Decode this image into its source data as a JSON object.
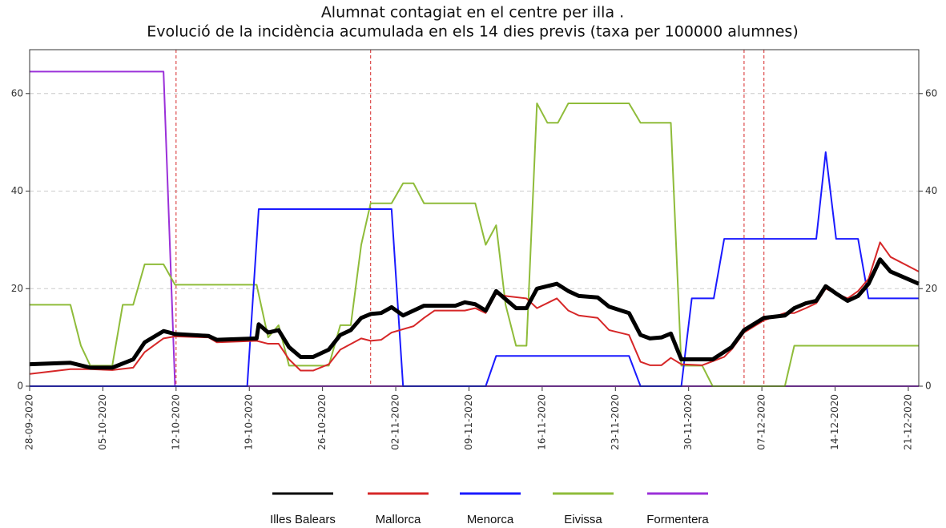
{
  "chart_data": {
    "type": "line",
    "title": "Alumnat contagiat en el centre per illa .",
    "subtitle": "Evolució de la incidència acumulada en els 14 dies previs (taxa per 100000 alumnes)",
    "xlim": [
      0,
      85
    ],
    "xticks": [
      {
        "value": 0,
        "label": "28-09-2020"
      },
      {
        "value": 7,
        "label": "05-10-2020"
      },
      {
        "value": 14,
        "label": "12-10-2020"
      },
      {
        "value": 21,
        "label": "19-10-2020"
      },
      {
        "value": 28,
        "label": "26-10-2020"
      },
      {
        "value": 35,
        "label": "02-11-2020"
      },
      {
        "value": 42,
        "label": "09-11-2020"
      },
      {
        "value": 49,
        "label": "16-11-2020"
      },
      {
        "value": 56,
        "label": "23-11-2020"
      },
      {
        "value": 63,
        "label": "30-11-2020"
      },
      {
        "value": 70,
        "label": "07-12-2020"
      },
      {
        "value": 77,
        "label": "14-12-2020"
      },
      {
        "value": 84,
        "label": "21-12-2020"
      }
    ],
    "ylim": [
      0,
      69
    ],
    "yticks": [
      0,
      20,
      40,
      60
    ],
    "grid": true,
    "vlines": [
      14,
      32.6,
      68.3,
      70.2
    ],
    "vline_color": "#d62728",
    "legend": "bottom",
    "series": [
      {
        "name": "Illes Balears",
        "color": "#000000",
        "width": 5,
        "x": [
          0,
          3.9,
          5.8,
          7.9,
          9.9,
          11.0,
          12.8,
          13.9,
          17.1,
          17.9,
          21.7,
          21.9,
          22.8,
          23.8,
          24.8,
          25.9,
          27.1,
          28.6,
          29.7,
          30.7,
          31.7,
          32.6,
          33.6,
          34.6,
          35.7,
          37.7,
          40.7,
          41.6,
          42.6,
          43.6,
          44.6,
          46.5,
          47.5,
          48.5,
          50.4,
          51.5,
          52.5,
          54.3,
          55.4,
          57.3,
          58.4,
          59.3,
          60.4,
          61.3,
          62.3,
          65.3,
          67.1,
          68.3,
          70.2,
          72.2,
          73.1,
          74.2,
          75.2,
          76.1,
          77.1,
          78.2,
          79.2,
          80.2,
          81.3,
          82.3,
          85
        ],
        "values": [
          4.5,
          4.8,
          3.8,
          3.8,
          5.5,
          9,
          11.3,
          10.7,
          10.3,
          9.5,
          9.8,
          12.7,
          11,
          11.5,
          8,
          6,
          6,
          7.5,
          10.5,
          11.5,
          14,
          14.8,
          15,
          16.2,
          14.5,
          16.5,
          16.5,
          17.2,
          16.8,
          15.5,
          19.5,
          16,
          16,
          20,
          21,
          19.5,
          18.5,
          18.2,
          16.3,
          15,
          10.5,
          9.8,
          10,
          10.8,
          5.5,
          5.5,
          8,
          11.5,
          14,
          14.5,
          16,
          17,
          17.5,
          20.5,
          19,
          17.5,
          18.5,
          21,
          26,
          23.5,
          21
        ]
      },
      {
        "name": "Mallorca",
        "color": "#d62728",
        "width": 2,
        "x": [
          0,
          3.9,
          5.8,
          7.9,
          9.9,
          11.0,
          12.8,
          13.9,
          17.1,
          17.9,
          21.7,
          22.8,
          23.8,
          24.8,
          25.9,
          27.1,
          28.6,
          29.7,
          31.7,
          32.6,
          33.6,
          34.6,
          36.7,
          37.7,
          38.7,
          41.6,
          42.6,
          43.6,
          44.6,
          45.5,
          47.5,
          48.5,
          50.4,
          51.5,
          52.5,
          54.3,
          55.4,
          57.3,
          58.4,
          59.3,
          60.4,
          61.3,
          62.3,
          64.3,
          66.4,
          67.1,
          68.3,
          70.2,
          72.2,
          73.1,
          74.2,
          75.2,
          76.1,
          77.1,
          78.2,
          79.2,
          80.2,
          81.3,
          82.3,
          85
        ],
        "values": [
          2.5,
          3.5,
          3.5,
          3.3,
          3.8,
          7,
          9.8,
          10.2,
          10,
          9,
          9.3,
          8.7,
          8.7,
          5.5,
          3.2,
          3.2,
          4.5,
          7.5,
          9.8,
          9.3,
          9.5,
          11,
          12.3,
          14,
          15.5,
          15.5,
          16,
          15,
          19,
          18.5,
          18,
          16,
          18,
          15.5,
          14.5,
          14,
          11.5,
          10.5,
          5,
          4.3,
          4.3,
          5.8,
          4.5,
          4.3,
          6,
          7.5,
          11,
          13.5,
          15,
          15,
          16,
          17,
          20,
          19,
          18,
          19.5,
          22,
          29.5,
          26.5,
          23.5
        ]
      },
      {
        "name": "Menorca",
        "color": "#1a1aff",
        "width": 2,
        "x": [
          0,
          20.8,
          21.9,
          34.6,
          35.7,
          43.6,
          44.6,
          57.3,
          58.4,
          62.3,
          63.3,
          65.4,
          66.4,
          75.2,
          76.1,
          77.1,
          79.2,
          80.2,
          85
        ],
        "values": [
          0,
          0,
          36.3,
          36.3,
          0,
          0,
          6.2,
          6.2,
          0,
          0,
          18,
          18,
          30.2,
          30.2,
          48,
          30.2,
          30.2,
          18,
          18
        ]
      },
      {
        "name": "Eivissa",
        "color": "#8fbc3a",
        "width": 2,
        "x": [
          0,
          3.9,
          4.9,
          5.8,
          7.9,
          8.9,
          9.9,
          11.0,
          12.8,
          13.9,
          21.7,
          22.8,
          23.8,
          24.8,
          28.6,
          29.7,
          30.7,
          31.7,
          32.6,
          34.6,
          35.7,
          36.7,
          37.7,
          42.6,
          43.6,
          44.6,
          45.5,
          46.5,
          47.5,
          48.5,
          49.5,
          50.5,
          51.5,
          57.3,
          58.4,
          61.3,
          62.3,
          64.3,
          65.3,
          72.2,
          73.1,
          85
        ],
        "values": [
          16.7,
          16.7,
          8.3,
          4.2,
          4.2,
          16.7,
          16.7,
          25,
          25,
          20.8,
          20.8,
          10,
          12.5,
          4.2,
          4.2,
          12.5,
          12.5,
          29,
          37.5,
          37.5,
          41.6,
          41.6,
          37.5,
          37.5,
          29,
          33,
          16.7,
          8.3,
          8.3,
          58,
          54,
          54,
          58,
          58,
          54,
          54,
          4.2,
          4.2,
          0,
          0,
          8.3,
          8.3
        ]
      },
      {
        "name": "Formentera",
        "color": "#9b30d9",
        "width": 2,
        "x": [
          0,
          12.8,
          13.9,
          85
        ],
        "values": [
          64.5,
          64.5,
          0,
          0
        ]
      }
    ]
  }
}
